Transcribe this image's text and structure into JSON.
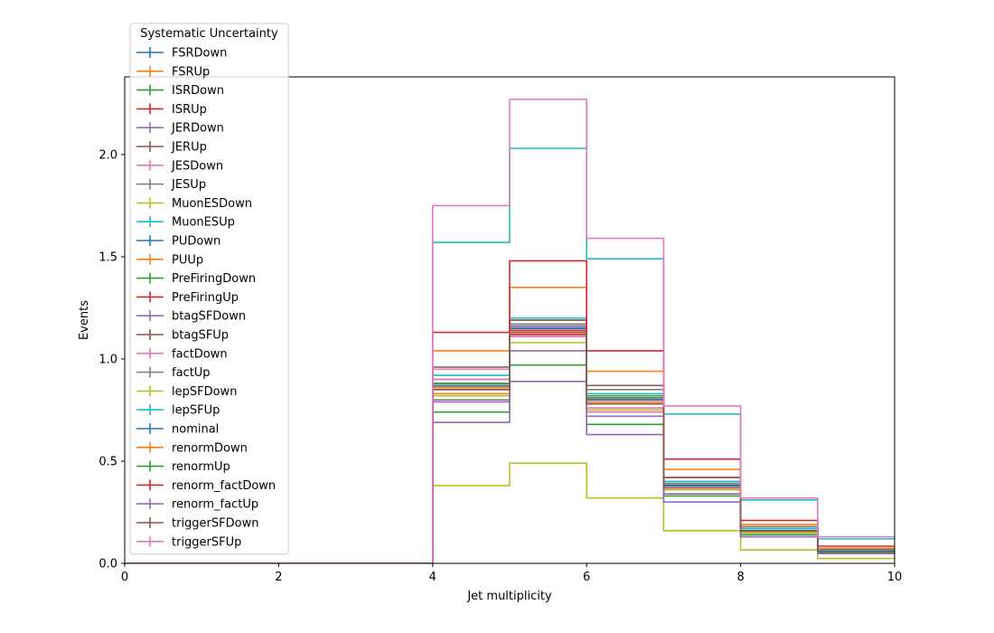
{
  "chart_data": {
    "type": "line",
    "style": "step-histogram",
    "xlabel": "Jet multiplicity",
    "ylabel": "Events",
    "xlim": [
      0,
      10
    ],
    "ylim": [
      0,
      2.38
    ],
    "xticks": [
      "0",
      "2",
      "4",
      "6",
      "8",
      "10"
    ],
    "yticks": [
      "0.0",
      "0.5",
      "1.0",
      "1.5",
      "2.0"
    ],
    "grid": false,
    "legend": {
      "title": "Systematic Uncertainty",
      "placement": "top-left, outside axes"
    },
    "bin_edges": [
      0,
      1,
      2,
      3,
      4,
      5,
      6,
      7,
      8,
      9,
      10
    ],
    "series": [
      {
        "name": "FSRDown",
        "color": "#1f77b4",
        "values": [
          0,
          0,
          0,
          0,
          0.87,
          1.17,
          0.8,
          0.38,
          0.16,
          0.06
        ]
      },
      {
        "name": "FSRUp",
        "color": "#ff7f0e",
        "values": [
          0,
          0,
          0,
          0,
          0.83,
          1.12,
          0.76,
          0.36,
          0.15,
          0.058
        ]
      },
      {
        "name": "ISRDown",
        "color": "#2ca02c",
        "values": [
          0,
          0,
          0,
          0,
          0.9,
          1.16,
          0.82,
          0.4,
          0.16,
          0.062
        ]
      },
      {
        "name": "ISRUp",
        "color": "#d62728",
        "values": [
          0,
          0,
          0,
          0,
          0.86,
          1.12,
          0.78,
          0.37,
          0.15,
          0.058
        ]
      },
      {
        "name": "JERDown",
        "color": "#9467bd",
        "values": [
          0,
          0,
          0,
          0,
          0.86,
          1.16,
          0.79,
          0.38,
          0.16,
          0.06
        ]
      },
      {
        "name": "JERUp",
        "color": "#8c564b",
        "values": [
          0,
          0,
          0,
          0,
          0.87,
          1.14,
          0.8,
          0.38,
          0.16,
          0.06
        ]
      },
      {
        "name": "JESDown",
        "color": "#e377c2",
        "values": [
          0,
          0,
          0,
          0,
          0.95,
          1.11,
          0.74,
          0.34,
          0.14,
          0.052
        ]
      },
      {
        "name": "JESUp",
        "color": "#7f7f7f",
        "values": [
          0,
          0,
          0,
          0,
          0.8,
          1.17,
          0.85,
          0.42,
          0.18,
          0.068
        ]
      },
      {
        "name": "MuonESDown",
        "color": "#bcbd22",
        "values": [
          0,
          0,
          0,
          0,
          0.38,
          0.49,
          0.32,
          0.16,
          0.066,
          0.024
        ]
      },
      {
        "name": "MuonESUp",
        "color": "#17becf",
        "values": [
          0,
          0,
          0,
          0,
          1.57,
          2.03,
          1.49,
          0.73,
          0.31,
          0.12
        ]
      },
      {
        "name": "PUDown",
        "color": "#1f77b4",
        "values": [
          0,
          0,
          0,
          0,
          0.88,
          1.19,
          0.81,
          0.39,
          0.17,
          0.062
        ]
      },
      {
        "name": "PUUp",
        "color": "#ff7f0e",
        "values": [
          0,
          0,
          0,
          0,
          0.86,
          1.13,
          0.79,
          0.37,
          0.16,
          0.058
        ]
      },
      {
        "name": "PreFiringDown",
        "color": "#2ca02c",
        "values": [
          0,
          0,
          0,
          0,
          0.88,
          1.15,
          0.81,
          0.39,
          0.16,
          0.061
        ]
      },
      {
        "name": "PreFiringUp",
        "color": "#d62728",
        "values": [
          0,
          0,
          0,
          0,
          0.87,
          1.14,
          0.8,
          0.38,
          0.16,
          0.06
        ]
      },
      {
        "name": "btagSFDown",
        "color": "#9467bd",
        "values": [
          0,
          0,
          0,
          0,
          0.79,
          1.04,
          0.72,
          0.34,
          0.14,
          0.054
        ]
      },
      {
        "name": "btagSFUp",
        "color": "#8c564b",
        "values": [
          0,
          0,
          0,
          0,
          0.96,
          1.19,
          0.87,
          0.42,
          0.17,
          0.066
        ]
      },
      {
        "name": "factDown",
        "color": "#e377c2",
        "values": [
          0,
          0,
          0,
          0,
          0.9,
          1.11,
          0.76,
          0.37,
          0.15,
          0.058
        ]
      },
      {
        "name": "factUp",
        "color": "#7f7f7f",
        "values": [
          0,
          0,
          0,
          0,
          0.85,
          1.17,
          0.81,
          0.39,
          0.16,
          0.062
        ]
      },
      {
        "name": "lepSFDown",
        "color": "#bcbd22",
        "values": [
          0,
          0,
          0,
          0,
          0.82,
          1.08,
          0.75,
          0.36,
          0.15,
          0.056
        ]
      },
      {
        "name": "lepSFUp",
        "color": "#17becf",
        "values": [
          0,
          0,
          0,
          0,
          0.92,
          1.2,
          0.83,
          0.4,
          0.17,
          0.064
        ]
      },
      {
        "name": "nominal",
        "color": "#1f77b4",
        "values": [
          0,
          0,
          0,
          0,
          0.87,
          1.15,
          0.8,
          0.38,
          0.16,
          0.06
        ]
      },
      {
        "name": "renormDown",
        "color": "#ff7f0e",
        "values": [
          0,
          0,
          0,
          0,
          1.04,
          1.35,
          0.94,
          0.46,
          0.19,
          0.074
        ]
      },
      {
        "name": "renormUp",
        "color": "#2ca02c",
        "values": [
          0,
          0,
          0,
          0,
          0.74,
          0.97,
          0.68,
          0.33,
          0.14,
          0.052
        ]
      },
      {
        "name": "renorm_factDown",
        "color": "#d62728",
        "values": [
          0,
          0,
          0,
          0,
          1.13,
          1.48,
          1.04,
          0.51,
          0.21,
          0.084
        ]
      },
      {
        "name": "renorm_factUp",
        "color": "#9467bd",
        "values": [
          0,
          0,
          0,
          0,
          0.69,
          0.89,
          0.63,
          0.3,
          0.13,
          0.048
        ]
      },
      {
        "name": "triggerSFDown",
        "color": "#8c564b",
        "values": [
          0,
          0,
          0,
          0,
          0.85,
          1.13,
          0.78,
          0.37,
          0.16,
          0.058
        ]
      },
      {
        "name": "triggerSFUp",
        "color": "#e377c2",
        "values": [
          0,
          0,
          0,
          0,
          1.75,
          2.27,
          1.59,
          0.77,
          0.32,
          0.13
        ]
      }
    ]
  }
}
